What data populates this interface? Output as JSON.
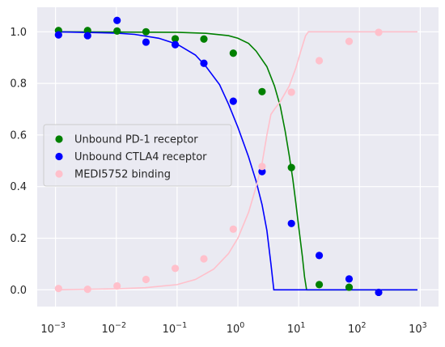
{
  "chart_data": {
    "type": "scatter",
    "title": "",
    "xlabel": "",
    "ylabel": "",
    "xscale": "log",
    "xlim": [
      0.0005,
      2000
    ],
    "ylim": [
      -0.065,
      1.095
    ],
    "grid": true,
    "legend_placement": "center-left",
    "x_ticks": [
      {
        "base": "10",
        "exp": "−3",
        "value": 0.001
      },
      {
        "base": "10",
        "exp": "−2",
        "value": 0.01
      },
      {
        "base": "10",
        "exp": "−1",
        "value": 0.1
      },
      {
        "base": "10",
        "exp": "0",
        "value": 1
      },
      {
        "base": "10",
        "exp": "1",
        "value": 10
      },
      {
        "base": "10",
        "exp": "2",
        "value": 100
      },
      {
        "base": "10",
        "exp": "3",
        "value": 1000
      }
    ],
    "y_ticks": [
      {
        "label": "0.0",
        "value": 0.0
      },
      {
        "label": "0.2",
        "value": 0.2
      },
      {
        "label": "0.4",
        "value": 0.4
      },
      {
        "label": "0.6",
        "value": 0.6
      },
      {
        "label": "0.8",
        "value": 0.8
      },
      {
        "label": "1.0",
        "value": 1.0
      }
    ],
    "series": [
      {
        "name": "Unbound PD-1 receptor",
        "color": "#008000",
        "points": [
          {
            "x": 0.00112,
            "y": 1.005
          },
          {
            "x": 0.00337,
            "y": 1.005
          },
          {
            "x": 0.0103,
            "y": 1.003
          },
          {
            "x": 0.0308,
            "y": 1.0
          },
          {
            "x": 0.0932,
            "y": 0.973
          },
          {
            "x": 0.276,
            "y": 0.972
          },
          {
            "x": 0.84,
            "y": 0.917
          },
          {
            "x": 2.5,
            "y": 0.768
          },
          {
            "x": 7.6,
            "y": 0.474
          },
          {
            "x": 21.8,
            "y": 0.02
          },
          {
            "x": 67.6,
            "y": 0.01
          }
        ],
        "fit": [
          {
            "x": 0.001,
            "y": 1.0
          },
          {
            "x": 0.1,
            "y": 0.998
          },
          {
            "x": 0.3,
            "y": 0.994
          },
          {
            "x": 0.7,
            "y": 0.985
          },
          {
            "x": 1.0,
            "y": 0.975
          },
          {
            "x": 1.5,
            "y": 0.955
          },
          {
            "x": 2.0,
            "y": 0.925
          },
          {
            "x": 3.0,
            "y": 0.865
          },
          {
            "x": 4.0,
            "y": 0.79
          },
          {
            "x": 5.0,
            "y": 0.71
          },
          {
            "x": 6.0,
            "y": 0.615
          },
          {
            "x": 7.0,
            "y": 0.52
          },
          {
            "x": 8.0,
            "y": 0.43
          },
          {
            "x": 9.0,
            "y": 0.335
          },
          {
            "x": 10.0,
            "y": 0.245
          },
          {
            "x": 11.5,
            "y": 0.13
          },
          {
            "x": 12.5,
            "y": 0.05
          },
          {
            "x": 13.5,
            "y": 0.0
          },
          {
            "x": 900,
            "y": 0.0
          }
        ]
      },
      {
        "name": "Unbound CTLA4 receptor",
        "color": "#0000ff",
        "points": [
          {
            "x": 0.00112,
            "y": 0.988
          },
          {
            "x": 0.00337,
            "y": 0.985
          },
          {
            "x": 0.0103,
            "y": 1.044
          },
          {
            "x": 0.0308,
            "y": 0.96
          },
          {
            "x": 0.0932,
            "y": 0.95
          },
          {
            "x": 0.276,
            "y": 0.878
          },
          {
            "x": 0.84,
            "y": 0.731
          },
          {
            "x": 2.5,
            "y": 0.458
          },
          {
            "x": 7.6,
            "y": 0.257
          },
          {
            "x": 21.8,
            "y": 0.133
          },
          {
            "x": 67.6,
            "y": 0.042
          },
          {
            "x": 207,
            "y": -0.01
          }
        ],
        "fit": [
          {
            "x": 0.001,
            "y": 1.0
          },
          {
            "x": 0.01,
            "y": 0.995
          },
          {
            "x": 0.02,
            "y": 0.99
          },
          {
            "x": 0.05,
            "y": 0.975
          },
          {
            "x": 0.1,
            "y": 0.952
          },
          {
            "x": 0.2,
            "y": 0.91
          },
          {
            "x": 0.3,
            "y": 0.865
          },
          {
            "x": 0.5,
            "y": 0.795
          },
          {
            "x": 0.7,
            "y": 0.72
          },
          {
            "x": 1.0,
            "y": 0.63
          },
          {
            "x": 1.5,
            "y": 0.515
          },
          {
            "x": 2.0,
            "y": 0.42
          },
          {
            "x": 2.5,
            "y": 0.33
          },
          {
            "x": 3.0,
            "y": 0.23
          },
          {
            "x": 3.5,
            "y": 0.1
          },
          {
            "x": 3.9,
            "y": 0.0
          },
          {
            "x": 900,
            "y": 0.0
          }
        ]
      },
      {
        "name": "MEDI5752 binding",
        "color": "#ffc0cb",
        "points": [
          {
            "x": 0.00112,
            "y": 0.005
          },
          {
            "x": 0.00337,
            "y": 0.002
          },
          {
            "x": 0.0103,
            "y": 0.015
          },
          {
            "x": 0.0308,
            "y": 0.04
          },
          {
            "x": 0.0932,
            "y": 0.083
          },
          {
            "x": 0.276,
            "y": 0.12
          },
          {
            "x": 0.84,
            "y": 0.235
          },
          {
            "x": 2.5,
            "y": 0.478
          },
          {
            "x": 7.6,
            "y": 0.766
          },
          {
            "x": 21.8,
            "y": 0.888
          },
          {
            "x": 67.6,
            "y": 0.963
          },
          {
            "x": 207,
            "y": 0.998
          }
        ],
        "fit": [
          {
            "x": 0.001,
            "y": 0.0
          },
          {
            "x": 0.01,
            "y": 0.004
          },
          {
            "x": 0.03,
            "y": 0.008
          },
          {
            "x": 0.1,
            "y": 0.02
          },
          {
            "x": 0.2,
            "y": 0.04
          },
          {
            "x": 0.4,
            "y": 0.08
          },
          {
            "x": 0.7,
            "y": 0.14
          },
          {
            "x": 1.0,
            "y": 0.2
          },
          {
            "x": 1.5,
            "y": 0.3
          },
          {
            "x": 2.0,
            "y": 0.4
          },
          {
            "x": 2.5,
            "y": 0.49
          },
          {
            "x": 3.0,
            "y": 0.6
          },
          {
            "x": 3.5,
            "y": 0.68
          },
          {
            "x": 4.0,
            "y": 0.7
          },
          {
            "x": 5.0,
            "y": 0.73
          },
          {
            "x": 7.0,
            "y": 0.79
          },
          {
            "x": 9.0,
            "y": 0.86
          },
          {
            "x": 11.0,
            "y": 0.93
          },
          {
            "x": 13.0,
            "y": 0.985
          },
          {
            "x": 14.5,
            "y": 1.0
          },
          {
            "x": 900,
            "y": 1.0
          }
        ]
      }
    ]
  }
}
